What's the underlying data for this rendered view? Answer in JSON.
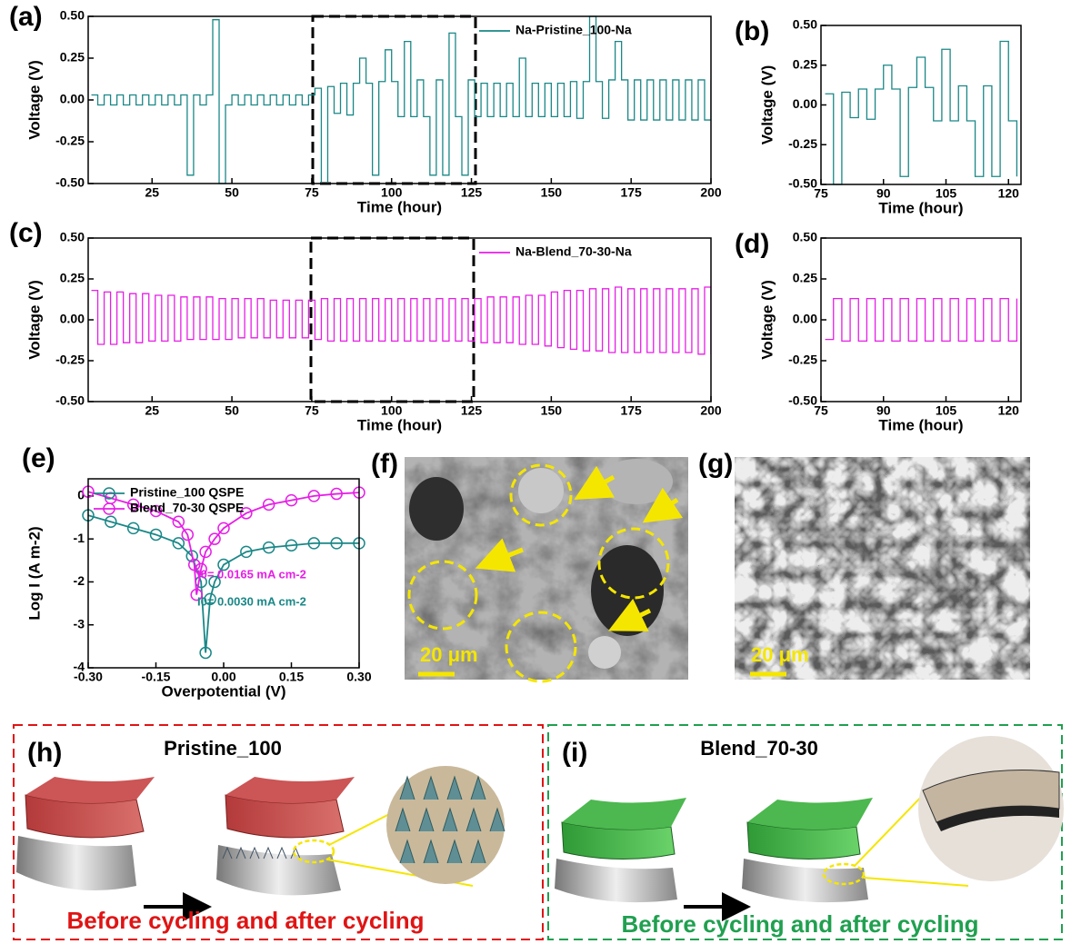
{
  "chart_data": [
    {
      "type": "line",
      "step": true,
      "x_label": "Time (hour)",
      "y_label": "Voltage (V)",
      "legend": "upper right",
      "xlim": [
        5,
        200
      ],
      "xticks": [
        25,
        50,
        75,
        100,
        125,
        150,
        175,
        200
      ],
      "ylim": [
        -0.5,
        0.5
      ],
      "yticks": [
        {
          "value": -0.5,
          "label": "-0.50"
        },
        {
          "value": -0.25,
          "label": "-0.25"
        },
        {
          "value": 0,
          "label": "0.00"
        },
        {
          "value": 0.25,
          "label": "0.25"
        },
        {
          "value": 0.5,
          "label": "0.50"
        }
      ],
      "series": [
        {
          "name": "Na-Pristine_100-Na",
          "color": "#1a8787",
          "x": [
            6,
            8,
            10,
            12,
            14,
            16,
            18,
            20,
            22,
            24,
            26,
            28,
            30,
            32,
            34,
            36,
            38,
            40,
            42,
            44,
            46,
            48,
            50,
            52,
            54,
            56,
            58,
            60,
            62,
            64,
            66,
            68,
            70,
            72,
            74,
            76,
            78,
            80,
            82,
            84,
            86,
            88,
            90,
            92,
            94,
            96,
            98,
            100,
            102,
            104,
            106,
            108,
            110,
            112,
            114,
            116,
            118,
            120,
            122,
            124,
            126,
            128,
            130,
            132,
            134,
            136,
            138,
            140,
            142,
            144,
            146,
            148,
            150,
            152,
            154,
            156,
            158,
            160,
            162,
            164,
            166,
            168,
            170,
            172,
            174,
            176,
            178,
            180,
            182,
            184,
            186,
            188,
            190,
            192,
            194,
            196,
            198,
            200
          ],
          "values": [
            0.03,
            -0.03,
            0.03,
            -0.03,
            0.03,
            -0.03,
            0.03,
            -0.03,
            0.03,
            -0.03,
            0.03,
            -0.03,
            0.03,
            -0.03,
            0.03,
            -0.45,
            0.03,
            -0.03,
            0.03,
            0.48,
            -0.5,
            -0.03,
            0.03,
            -0.03,
            0.03,
            -0.03,
            0.03,
            -0.03,
            0.03,
            -0.03,
            0.03,
            -0.03,
            0.03,
            -0.03,
            0.03,
            0.07,
            -0.5,
            0.08,
            -0.08,
            0.1,
            -0.09,
            0.1,
            0.25,
            0.1,
            -0.45,
            0.11,
            0.3,
            0.11,
            -0.1,
            0.35,
            -0.1,
            0.12,
            -0.1,
            -0.45,
            0.12,
            -0.45,
            0.4,
            -0.1,
            -0.45,
            0.12,
            -0.1,
            0.1,
            -0.1,
            0.1,
            -0.1,
            0.1,
            -0.1,
            0.25,
            -0.1,
            0.1,
            -0.1,
            0.1,
            -0.1,
            0.1,
            -0.1,
            0.11,
            -0.11,
            0.11,
            0.5,
            0.11,
            -0.11,
            0.12,
            0.35,
            0.12,
            -0.12,
            0.12,
            -0.12,
            0.12,
            -0.12,
            0.12,
            -0.12,
            0.12,
            -0.12,
            0.12,
            -0.12,
            0.12,
            -0.12,
            0.12
          ]
        }
      ]
    },
    {
      "type": "line",
      "step": true,
      "x_label": "Time (hour)",
      "y_label": "Voltage (V)",
      "xlim": [
        75,
        123
      ],
      "xticks": [
        75,
        90,
        105,
        120
      ],
      "ylim": [
        -0.5,
        0.5
      ],
      "yticks": [
        {
          "value": -0.5,
          "label": "-0.50"
        },
        {
          "value": -0.25,
          "label": "-0.25"
        },
        {
          "value": 0,
          "label": "0.00"
        },
        {
          "value": 0.25,
          "label": "0.25"
        },
        {
          "value": 0.5,
          "label": "0.50"
        }
      ],
      "series": [
        {
          "color": "#1a8787",
          "x": [
            76,
            78,
            80,
            82,
            84,
            86,
            88,
            90,
            92,
            94,
            96,
            98,
            100,
            102,
            104,
            106,
            108,
            110,
            112,
            114,
            116,
            118,
            120,
            122
          ],
          "values": [
            0.07,
            -0.5,
            0.08,
            -0.08,
            0.1,
            -0.09,
            0.1,
            0.25,
            0.1,
            -0.45,
            0.11,
            0.3,
            0.11,
            -0.1,
            0.35,
            -0.1,
            0.12,
            -0.1,
            -0.45,
            0.12,
            -0.45,
            0.4,
            -0.1,
            -0.45
          ]
        }
      ]
    },
    {
      "type": "line",
      "step": true,
      "x_label": "Time (hour)",
      "y_label": "Voltage (V)",
      "legend": "upper right",
      "xlim": [
        5,
        200
      ],
      "xticks": [
        25,
        50,
        75,
        100,
        125,
        150,
        175,
        200
      ],
      "ylim": [
        -0.5,
        0.5
      ],
      "yticks": [
        {
          "value": -0.5,
          "label": "-0.50"
        },
        {
          "value": -0.25,
          "label": "-0.25"
        },
        {
          "value": 0,
          "label": "0.00"
        },
        {
          "value": 0.25,
          "label": "0.25"
        },
        {
          "value": 0.5,
          "label": "0.50"
        }
      ],
      "series": [
        {
          "name": "Na-Blend_70-30-Na",
          "color": "#e61ee6",
          "x": [
            6,
            8,
            10,
            12,
            14,
            16,
            18,
            20,
            22,
            24,
            26,
            28,
            30,
            32,
            34,
            36,
            38,
            40,
            42,
            44,
            46,
            48,
            50,
            52,
            54,
            56,
            58,
            60,
            62,
            64,
            66,
            68,
            70,
            72,
            74,
            76,
            78,
            80,
            82,
            84,
            86,
            88,
            90,
            92,
            94,
            96,
            98,
            100,
            102,
            104,
            106,
            108,
            110,
            112,
            114,
            116,
            118,
            120,
            122,
            124,
            126,
            128,
            130,
            132,
            134,
            136,
            138,
            140,
            142,
            144,
            146,
            148,
            150,
            152,
            154,
            156,
            158,
            160,
            162,
            164,
            166,
            168,
            170,
            172,
            174,
            176,
            178,
            180,
            182,
            184,
            186,
            188,
            190,
            192,
            194,
            196,
            198,
            200
          ],
          "values": [
            0.18,
            -0.15,
            0.17,
            -0.15,
            0.17,
            -0.14,
            0.16,
            -0.14,
            0.16,
            -0.13,
            0.15,
            -0.13,
            0.15,
            -0.13,
            0.14,
            -0.12,
            0.14,
            -0.12,
            0.14,
            -0.12,
            0.13,
            -0.12,
            0.13,
            -0.11,
            0.13,
            -0.11,
            0.13,
            -0.11,
            0.12,
            -0.11,
            0.12,
            -0.11,
            0.12,
            -0.11,
            0.12,
            -0.12,
            0.13,
            -0.13,
            0.13,
            -0.13,
            0.13,
            -0.13,
            0.13,
            -0.13,
            0.13,
            -0.13,
            0.13,
            -0.13,
            0.13,
            -0.13,
            0.13,
            -0.13,
            0.13,
            -0.13,
            0.13,
            -0.13,
            0.13,
            -0.13,
            0.13,
            -0.13,
            0.13,
            -0.14,
            0.14,
            -0.14,
            0.14,
            -0.14,
            0.14,
            -0.15,
            0.15,
            -0.15,
            0.15,
            -0.16,
            0.17,
            -0.17,
            0.18,
            -0.18,
            0.18,
            -0.19,
            0.19,
            -0.19,
            0.19,
            -0.2,
            0.2,
            -0.2,
            0.19,
            -0.2,
            0.19,
            -0.2,
            0.19,
            -0.2,
            0.19,
            -0.2,
            0.19,
            -0.2,
            0.19,
            -0.21,
            0.2,
            -0.21
          ]
        }
      ]
    },
    {
      "type": "line",
      "step": true,
      "x_label": "Time (hour)",
      "y_label": "Voltage (V)",
      "xlim": [
        75,
        123
      ],
      "xticks": [
        75,
        90,
        105,
        120
      ],
      "ylim": [
        -0.5,
        0.5
      ],
      "yticks": [
        {
          "value": -0.5,
          "label": "-0.50"
        },
        {
          "value": -0.25,
          "label": "-0.25"
        },
        {
          "value": 0,
          "label": "0.00"
        },
        {
          "value": 0.25,
          "label": "0.25"
        },
        {
          "value": 0.5,
          "label": "0.50"
        }
      ],
      "series": [
        {
          "color": "#e61ee6",
          "x": [
            76,
            78,
            80,
            82,
            84,
            86,
            88,
            90,
            92,
            94,
            96,
            98,
            100,
            102,
            104,
            106,
            108,
            110,
            112,
            114,
            116,
            118,
            120,
            122
          ],
          "values": [
            -0.12,
            0.13,
            -0.13,
            0.13,
            -0.13,
            0.13,
            -0.13,
            0.13,
            -0.13,
            0.13,
            -0.13,
            0.13,
            -0.13,
            0.13,
            -0.13,
            0.13,
            -0.13,
            0.13,
            -0.13,
            0.13,
            -0.13,
            0.13,
            -0.13,
            0.13
          ]
        }
      ]
    },
    {
      "type": "line",
      "markers": true,
      "x_label": "Overpotential (V)",
      "y_label": "Log I (A m-2)",
      "legend": "upper left",
      "xlim": [
        -0.3,
        0.3
      ],
      "xticks": [
        {
          "value": -0.3,
          "label": "-0.30"
        },
        {
          "value": -0.15,
          "label": "-0.15"
        },
        {
          "value": 0,
          "label": "0.00"
        },
        {
          "value": 0.15,
          "label": "0.15"
        },
        {
          "value": 0.3,
          "label": "0.30"
        }
      ],
      "ylim": [
        -4,
        0.4
      ],
      "yticks": [
        -4,
        -3,
        -2,
        -1,
        0
      ],
      "series": [
        {
          "name": "Pristine_100 QSPE",
          "color": "#1a8787",
          "x": [
            -0.3,
            -0.25,
            -0.2,
            -0.15,
            -0.1,
            -0.07,
            -0.05,
            -0.04,
            -0.03,
            -0.02,
            0,
            0.05,
            0.1,
            0.15,
            0.2,
            0.25,
            0.3
          ],
          "values": [
            -0.45,
            -0.6,
            -0.75,
            -0.9,
            -1.1,
            -1.4,
            -2.0,
            -3.65,
            -2.4,
            -2.0,
            -1.6,
            -1.3,
            -1.2,
            -1.15,
            -1.1,
            -1.1,
            -1.1
          ]
        },
        {
          "name": "Blend_70-30 QSPE",
          "color": "#e61ee6",
          "x": [
            -0.3,
            -0.25,
            -0.2,
            -0.15,
            -0.1,
            -0.08,
            -0.065,
            -0.06,
            -0.05,
            -0.04,
            -0.02,
            0,
            0.05,
            0.1,
            0.15,
            0.2,
            0.25,
            0.3
          ],
          "values": [
            0.1,
            -0.05,
            -0.2,
            -0.35,
            -0.6,
            -0.9,
            -1.6,
            -2.3,
            -1.7,
            -1.3,
            -1.0,
            -0.75,
            -0.4,
            -0.2,
            -0.1,
            0,
            0.05,
            0.08
          ]
        }
      ],
      "annotations": [
        {
          "text": "I0= 0.0165 mA cm-2",
          "color": "#e61ee6"
        },
        {
          "text": "I0= 0.0030 mA cm-2",
          "color": "#1a8787"
        }
      ]
    }
  ],
  "panel_labels": [
    "(a)",
    "(b)",
    "(c)",
    "(d)",
    "(e)",
    "(f)",
    "(g)",
    "(h)",
    "(i)"
  ],
  "sem_images": [
    {
      "scale_bar": "20 μm"
    },
    {
      "scale_bar": "20 μm"
    }
  ],
  "schematics": [
    {
      "title": "Pristine_100",
      "caption": "Before cycling and after cycling"
    },
    {
      "title": "Blend_70-30",
      "caption": "Before cycling and after cycling"
    }
  ]
}
